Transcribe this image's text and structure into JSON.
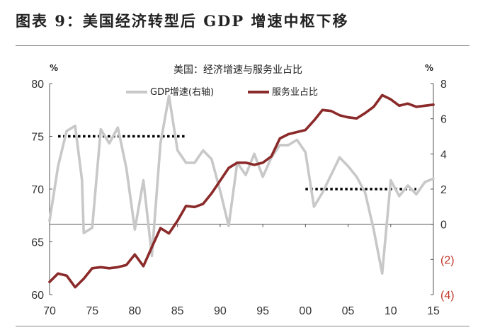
{
  "figure": {
    "title": "图表 9：美国经济转型后 GDP 增速中枢下移"
  },
  "chart_data": {
    "type": "line",
    "subtitle": "美国：经济增速与服务业占比",
    "y_left_unit": "%",
    "y_right_unit": "%",
    "y_left_range": [
      60,
      80
    ],
    "y_right_range": [
      -4,
      8
    ],
    "x_range": [
      1970,
      2015
    ],
    "x_ticks": [
      1970,
      1975,
      1980,
      1985,
      1990,
      1995,
      2000,
      2005,
      2010,
      2015
    ],
    "x_tick_labels": [
      "70",
      "75",
      "80",
      "85",
      "90",
      "95",
      "00",
      "05",
      "10",
      "15"
    ],
    "y_left_ticks": [
      {
        "value": 60,
        "label": "60"
      },
      {
        "value": 65,
        "label": "65"
      },
      {
        "value": 70,
        "label": "70"
      },
      {
        "value": 75,
        "label": "75"
      },
      {
        "value": 80,
        "label": "80"
      }
    ],
    "y_right_ticks": [
      {
        "value": -4,
        "label": "(4)",
        "negative": true
      },
      {
        "value": -2,
        "label": "(2)",
        "negative": true
      },
      {
        "value": 0,
        "label": "0",
        "negative": false
      },
      {
        "value": 2,
        "label": "2",
        "negative": false
      },
      {
        "value": 4,
        "label": "4",
        "negative": false
      },
      {
        "value": 6,
        "label": "6",
        "negative": false
      },
      {
        "value": 8,
        "label": "8",
        "negative": false
      }
    ],
    "series": [
      {
        "name": "GDP增速(右轴)",
        "axis": "right",
        "color": "#c8c8c8",
        "points": [
          [
            1970,
            0.2
          ],
          [
            1971,
            3.3
          ],
          [
            1972,
            5.3
          ],
          [
            1973,
            5.6
          ],
          [
            1973.8,
            2.5
          ],
          [
            1974,
            -0.5
          ],
          [
            1975,
            -0.2
          ],
          [
            1976,
            5.4
          ],
          [
            1977,
            4.6
          ],
          [
            1978,
            5.5
          ],
          [
            1979,
            3.2
          ],
          [
            1980,
            -0.3
          ],
          [
            1981,
            2.5
          ],
          [
            1982,
            -1.8
          ],
          [
            1983,
            4.6
          ],
          [
            1984,
            7.3
          ],
          [
            1985,
            4.2
          ],
          [
            1986,
            3.5
          ],
          [
            1987,
            3.5
          ],
          [
            1988,
            4.2
          ],
          [
            1989,
            3.7
          ],
          [
            1990,
            1.9
          ],
          [
            1991,
            -0.1
          ],
          [
            1992,
            3.5
          ],
          [
            1993,
            2.8
          ],
          [
            1994,
            4.0
          ],
          [
            1995,
            2.7
          ],
          [
            1996,
            3.8
          ],
          [
            1997,
            4.5
          ],
          [
            1998,
            4.5
          ],
          [
            1999,
            4.8
          ],
          [
            2000,
            4.1
          ],
          [
            2001,
            1.0
          ],
          [
            2002,
            1.8
          ],
          [
            2003,
            2.8
          ],
          [
            2004,
            3.8
          ],
          [
            2005,
            3.3
          ],
          [
            2006,
            2.7
          ],
          [
            2007,
            1.8
          ],
          [
            2008,
            -0.3
          ],
          [
            2009,
            -2.8
          ],
          [
            2010,
            2.5
          ],
          [
            2011,
            1.6
          ],
          [
            2012,
            2.2
          ],
          [
            2013,
            1.7
          ],
          [
            2014,
            2.4
          ],
          [
            2015,
            2.6
          ]
        ]
      },
      {
        "name": "服务业占比",
        "axis": "left",
        "color": "#8b2a2a",
        "points": [
          [
            1970,
            61.2
          ],
          [
            1971,
            62.0
          ],
          [
            1972,
            61.8
          ],
          [
            1973,
            60.7
          ],
          [
            1974,
            61.5
          ],
          [
            1975,
            62.5
          ],
          [
            1976,
            62.6
          ],
          [
            1977,
            62.5
          ],
          [
            1978,
            62.6
          ],
          [
            1979,
            62.8
          ],
          [
            1980,
            63.8
          ],
          [
            1981,
            62.7
          ],
          [
            1982,
            64.5
          ],
          [
            1983,
            66.3
          ],
          [
            1984,
            65.8
          ],
          [
            1985,
            67.0
          ],
          [
            1986,
            68.4
          ],
          [
            1987,
            68.3
          ],
          [
            1988,
            68.6
          ],
          [
            1989,
            69.6
          ],
          [
            1990,
            70.8
          ],
          [
            1991,
            72.0
          ],
          [
            1992,
            72.5
          ],
          [
            1993,
            72.5
          ],
          [
            1994,
            72.3
          ],
          [
            1995,
            72.5
          ],
          [
            1996,
            73.1
          ],
          [
            1997,
            74.8
          ],
          [
            1998,
            75.2
          ],
          [
            1999,
            75.4
          ],
          [
            2000,
            75.6
          ],
          [
            2001,
            76.5
          ],
          [
            2002,
            77.5
          ],
          [
            2003,
            77.4
          ],
          [
            2004,
            77.0
          ],
          [
            2005,
            76.8
          ],
          [
            2006,
            76.7
          ],
          [
            2007,
            77.2
          ],
          [
            2008,
            77.8
          ],
          [
            2009,
            78.9
          ],
          [
            2010,
            78.5
          ],
          [
            2011,
            77.9
          ],
          [
            2012,
            78.1
          ],
          [
            2013,
            77.8
          ],
          [
            2014,
            77.9
          ],
          [
            2015,
            78.0
          ]
        ]
      }
    ],
    "reference_lines": [
      {
        "axis": "right",
        "value": 5.0,
        "x_start": 1971,
        "x_end": 1986,
        "style": "dotted",
        "color": "#000000"
      },
      {
        "axis": "right",
        "value": 2.0,
        "x_start": 2000,
        "x_end": 2013,
        "style": "dotted",
        "color": "#000000"
      }
    ],
    "legend_position": "top-center",
    "grid": false
  }
}
